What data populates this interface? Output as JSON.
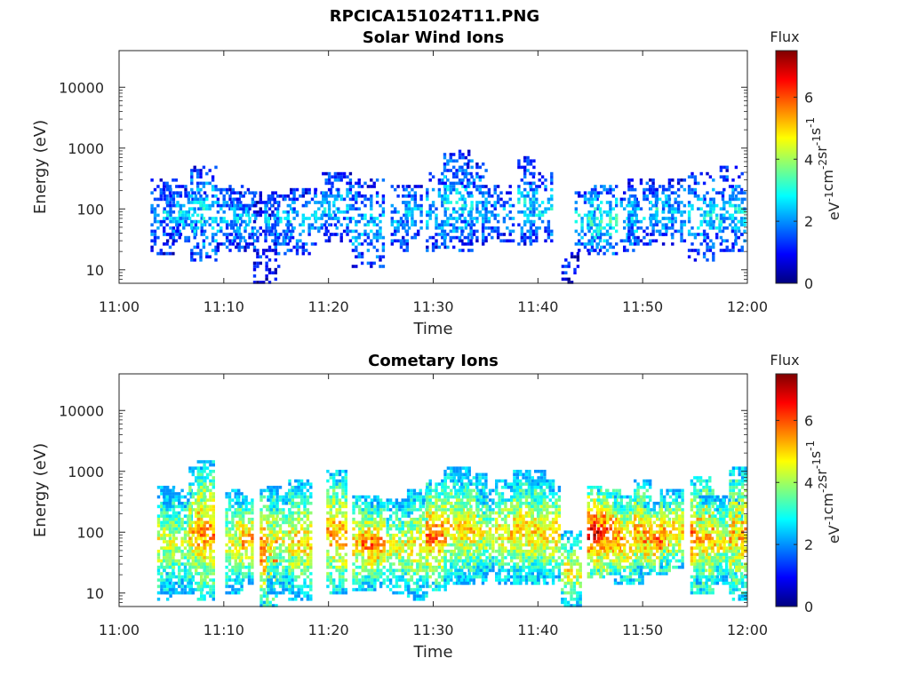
{
  "figure": {
    "filename_title": "RPCICA151024T11.PNG"
  },
  "chart_data": [
    {
      "type": "heatmap",
      "title": "Solar Wind Ions",
      "xlabel": "Time",
      "ylabel": "Energy (eV)",
      "x_ticks": [
        "11:00",
        "11:10",
        "11:20",
        "11:30",
        "11:40",
        "11:50",
        "12:00"
      ],
      "x_range_minutes": [
        0,
        60
      ],
      "y_ticks": [
        "10",
        "100",
        "1000",
        "10000"
      ],
      "y_scale": "log",
      "y_range": [
        6,
        40000
      ],
      "colorbar": {
        "label": "Flux",
        "units": "eV-1cm-2sr-1s-1",
        "range": [
          0,
          7.5
        ],
        "ticks": [
          "0",
          "2",
          "4",
          "6"
        ],
        "colormap": "jet"
      },
      "bursts": [
        {
          "t": 4.3,
          "lo": 18,
          "hi": 300,
          "flux": 2.0
        },
        {
          "t": 5.5,
          "lo": 30,
          "hi": 250,
          "flux": 2.4
        },
        {
          "t": 6.9,
          "lo": 40,
          "hi": 200,
          "flux": 2.6
        },
        {
          "t": 8.1,
          "lo": 15,
          "hi": 500,
          "flux": 2.8
        },
        {
          "t": 10.9,
          "lo": 20,
          "hi": 250,
          "flux": 2.3
        },
        {
          "t": 11.9,
          "lo": 25,
          "hi": 200,
          "flux": 2.4
        },
        {
          "t": 14.1,
          "lo": 6,
          "hi": 200,
          "flux": 1.4
        },
        {
          "t": 15.3,
          "lo": 25,
          "hi": 180,
          "flux": 2.6
        },
        {
          "t": 17.3,
          "lo": 18,
          "hi": 220,
          "flux": 2.2
        },
        {
          "t": 19.8,
          "lo": 40,
          "hi": 220,
          "flux": 2.6
        },
        {
          "t": 20.8,
          "lo": 30,
          "hi": 400,
          "flux": 2.3
        },
        {
          "t": 23.8,
          "lo": 12,
          "hi": 300,
          "flux": 2.4
        },
        {
          "t": 26.8,
          "lo": 20,
          "hi": 250,
          "flux": 2.1
        },
        {
          "t": 28.0,
          "lo": 35,
          "hi": 250,
          "flux": 2.5
        },
        {
          "t": 30.3,
          "lo": 20,
          "hi": 400,
          "flux": 2.4
        },
        {
          "t": 32.4,
          "lo": 20,
          "hi": 900,
          "flux": 2.7
        },
        {
          "t": 33.9,
          "lo": 25,
          "hi": 600,
          "flux": 2.4
        },
        {
          "t": 36.2,
          "lo": 30,
          "hi": 250,
          "flux": 2.2
        },
        {
          "t": 38.9,
          "lo": 25,
          "hi": 700,
          "flux": 2.5
        },
        {
          "t": 40.3,
          "lo": 30,
          "hi": 400,
          "flux": 2.6
        },
        {
          "t": 43.1,
          "lo": 6,
          "hi": 20,
          "flux": 1.1
        },
        {
          "t": 44.8,
          "lo": 22,
          "hi": 200,
          "flux": 2.8
        },
        {
          "t": 46.2,
          "lo": 18,
          "hi": 250,
          "flux": 3.1
        },
        {
          "t": 48.7,
          "lo": 20,
          "hi": 200,
          "flux": 2.6
        },
        {
          "t": 50.0,
          "lo": 25,
          "hi": 300,
          "flux": 2.4
        },
        {
          "t": 51.8,
          "lo": 40,
          "hi": 250,
          "flux": 2.9
        },
        {
          "t": 53.0,
          "lo": 25,
          "hi": 300,
          "flux": 2.4
        },
        {
          "t": 55.6,
          "lo": 15,
          "hi": 400,
          "flux": 2.5
        },
        {
          "t": 56.8,
          "lo": 30,
          "hi": 200,
          "flux": 2.8
        },
        {
          "t": 58.5,
          "lo": 20,
          "hi": 500,
          "flux": 2.6
        },
        {
          "t": 59.6,
          "lo": 30,
          "hi": 250,
          "flux": 2.8
        }
      ]
    },
    {
      "type": "heatmap",
      "title": "Cometary Ions",
      "xlabel": "Time",
      "ylabel": "Energy (eV)",
      "x_ticks": [
        "11:00",
        "11:10",
        "11:20",
        "11:30",
        "11:40",
        "11:50",
        "12:00"
      ],
      "x_range_minutes": [
        0,
        60
      ],
      "y_ticks": [
        "10",
        "100",
        "1000",
        "10000"
      ],
      "y_scale": "log",
      "y_range": [
        6,
        40000
      ],
      "colorbar": {
        "label": "Flux",
        "units": "eV-1cm-2sr-1s-1",
        "range": [
          0,
          7.5
        ],
        "ticks": [
          "0",
          "2",
          "4",
          "6"
        ],
        "colormap": "jet"
      },
      "bursts": [
        {
          "t": 4.5,
          "lo": 8,
          "hi": 600,
          "flux": 4.6
        },
        {
          "t": 5.6,
          "lo": 10,
          "hi": 500,
          "flux": 4.3
        },
        {
          "t": 7.5,
          "lo": 10,
          "hi": 1200,
          "flux": 5.2
        },
        {
          "t": 8.3,
          "lo": 8,
          "hi": 1500,
          "flux": 5.6
        },
        {
          "t": 11.0,
          "lo": 10,
          "hi": 500,
          "flux": 4.6
        },
        {
          "t": 12.0,
          "lo": 15,
          "hi": 400,
          "flux": 5.4
        },
        {
          "t": 14.3,
          "lo": 6,
          "hi": 500,
          "flux": 5.9
        },
        {
          "t": 15.4,
          "lo": 10,
          "hi": 600,
          "flux": 4.5
        },
        {
          "t": 17.3,
          "lo": 8,
          "hi": 700,
          "flux": 5.0
        },
        {
          "t": 20.8,
          "lo": 10,
          "hi": 1000,
          "flux": 5.4
        },
        {
          "t": 23.7,
          "lo": 12,
          "hi": 400,
          "flux": 5.2
        },
        {
          "t": 24.3,
          "lo": 15,
          "hi": 300,
          "flux": 5.8
        },
        {
          "t": 26.8,
          "lo": 10,
          "hi": 350,
          "flux": 4.6
        },
        {
          "t": 28.5,
          "lo": 8,
          "hi": 500,
          "flux": 4.8
        },
        {
          "t": 30.3,
          "lo": 12,
          "hi": 700,
          "flux": 5.8
        },
        {
          "t": 32.3,
          "lo": 15,
          "hi": 1200,
          "flux": 4.9
        },
        {
          "t": 33.6,
          "lo": 15,
          "hi": 900,
          "flux": 5.0
        },
        {
          "t": 35.0,
          "lo": 20,
          "hi": 500,
          "flux": 4.5
        },
        {
          "t": 37.2,
          "lo": 15,
          "hi": 700,
          "flux": 4.9
        },
        {
          "t": 39.2,
          "lo": 15,
          "hi": 1000,
          "flux": 5.0
        },
        {
          "t": 40.6,
          "lo": 15,
          "hi": 700,
          "flux": 5.1
        },
        {
          "t": 43.2,
          "lo": 6,
          "hi": 100,
          "flux": 4.7
        },
        {
          "t": 45.7,
          "lo": 18,
          "hi": 600,
          "flux": 6.8
        },
        {
          "t": 46.8,
          "lo": 20,
          "hi": 500,
          "flux": 6.3
        },
        {
          "t": 48.7,
          "lo": 15,
          "hi": 400,
          "flux": 5.5
        },
        {
          "t": 50.0,
          "lo": 20,
          "hi": 700,
          "flux": 5.4
        },
        {
          "t": 51.4,
          "lo": 20,
          "hi": 300,
          "flux": 5.9
        },
        {
          "t": 52.8,
          "lo": 25,
          "hi": 500,
          "flux": 5.2
        },
        {
          "t": 55.7,
          "lo": 10,
          "hi": 800,
          "flux": 5.8
        },
        {
          "t": 56.5,
          "lo": 15,
          "hi": 400,
          "flux": 5.2
        },
        {
          "t": 58.3,
          "lo": 15,
          "hi": 400,
          "flux": 4.6
        },
        {
          "t": 59.4,
          "lo": 8,
          "hi": 1200,
          "flux": 5.4
        }
      ]
    }
  ]
}
